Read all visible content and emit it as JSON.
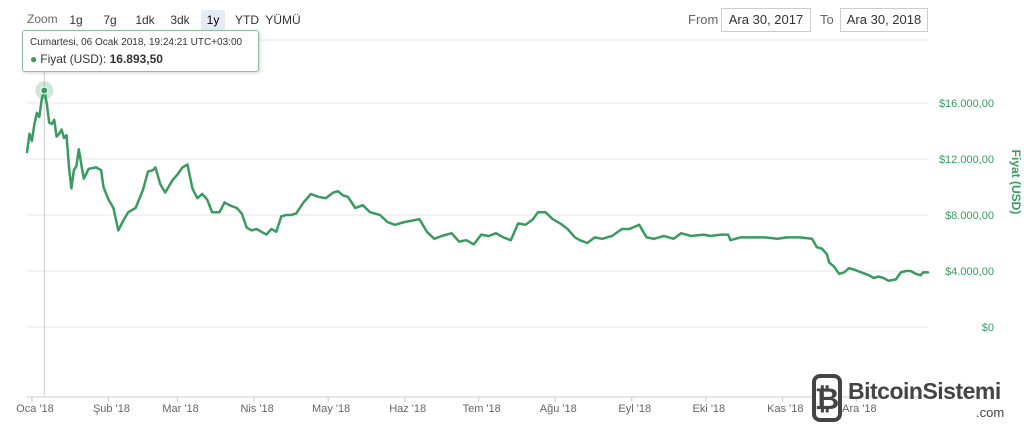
{
  "toolbar": {
    "zoom_label": "Zoom",
    "ranges": [
      "1g",
      "7g",
      "1dk",
      "3dk",
      "1y",
      "YTD",
      "YÜMÜ"
    ],
    "active_range": "1y",
    "from_label": "From",
    "from_value": "Ara 30, 2017",
    "to_label": "To",
    "to_value": "Ara 30, 2018"
  },
  "tooltip": {
    "date": "Cumartesi, 06 Ocak 2018, 19:24:21 UTC+03:00",
    "series": "Fiyat (USD)",
    "value": "16.893,50"
  },
  "watermark": {
    "name": "BitcoinSistemi",
    "suffix": ".com"
  },
  "colors": {
    "line": "#3a9a60",
    "grid": "#e6e6e6",
    "axis_text": "#666666"
  },
  "chart_data": {
    "type": "line",
    "series": [
      {
        "name": "Fiyat (USD)",
        "points": [
          [
            "2017-12-30",
            12500
          ],
          [
            "2017-12-31",
            13800
          ],
          [
            "2018-01-01",
            13300
          ],
          [
            "2018-01-02",
            14500
          ],
          [
            "2018-01-03",
            15300
          ],
          [
            "2018-01-04",
            15000
          ],
          [
            "2018-01-05",
            16300
          ],
          [
            "2018-01-06",
            16893.5
          ],
          [
            "2018-01-07",
            16000
          ],
          [
            "2018-01-08",
            14600
          ],
          [
            "2018-01-09",
            14500
          ],
          [
            "2018-01-10",
            14800
          ],
          [
            "2018-01-11",
            13600
          ],
          [
            "2018-01-12",
            13800
          ],
          [
            "2018-01-13",
            14100
          ],
          [
            "2018-01-14",
            13500
          ],
          [
            "2018-01-15",
            13700
          ],
          [
            "2018-01-16",
            11400
          ],
          [
            "2018-01-17",
            9900
          ],
          [
            "2018-01-18",
            11200
          ],
          [
            "2018-01-19",
            11500
          ],
          [
            "2018-01-20",
            12700
          ],
          [
            "2018-01-21",
            11600
          ],
          [
            "2018-01-22",
            10600
          ],
          [
            "2018-01-24",
            11300
          ],
          [
            "2018-01-27",
            11400
          ],
          [
            "2018-01-29",
            11200
          ],
          [
            "2018-01-30",
            10000
          ],
          [
            "2018-02-01",
            9100
          ],
          [
            "2018-02-03",
            8500
          ],
          [
            "2018-02-05",
            6900
          ],
          [
            "2018-02-07",
            7600
          ],
          [
            "2018-02-09",
            8200
          ],
          [
            "2018-02-12",
            8500
          ],
          [
            "2018-02-15",
            9800
          ],
          [
            "2018-02-17",
            11100
          ],
          [
            "2018-02-19",
            11200
          ],
          [
            "2018-02-20",
            11400
          ],
          [
            "2018-02-22",
            10200
          ],
          [
            "2018-02-24",
            9600
          ],
          [
            "2018-02-27",
            10500
          ],
          [
            "2018-03-01",
            10900
          ],
          [
            "2018-03-03",
            11400
          ],
          [
            "2018-03-05",
            11600
          ],
          [
            "2018-03-07",
            9900
          ],
          [
            "2018-03-09",
            9200
          ],
          [
            "2018-03-11",
            9500
          ],
          [
            "2018-03-13",
            9100
          ],
          [
            "2018-03-15",
            8200
          ],
          [
            "2018-03-18",
            8200
          ],
          [
            "2018-03-20",
            8900
          ],
          [
            "2018-03-22",
            8700
          ],
          [
            "2018-03-25",
            8500
          ],
          [
            "2018-03-27",
            8100
          ],
          [
            "2018-03-29",
            7100
          ],
          [
            "2018-03-31",
            6900
          ],
          [
            "2018-04-02",
            7000
          ],
          [
            "2018-04-04",
            6800
          ],
          [
            "2018-04-06",
            6600
          ],
          [
            "2018-04-08",
            7000
          ],
          [
            "2018-04-10",
            6800
          ],
          [
            "2018-04-12",
            7900
          ],
          [
            "2018-04-14",
            8000
          ],
          [
            "2018-04-16",
            8000
          ],
          [
            "2018-04-18",
            8100
          ],
          [
            "2018-04-21",
            8900
          ],
          [
            "2018-04-24",
            9500
          ],
          [
            "2018-04-27",
            9300
          ],
          [
            "2018-04-30",
            9200
          ],
          [
            "2018-05-03",
            9600
          ],
          [
            "2018-05-05",
            9700
          ],
          [
            "2018-05-07",
            9400
          ],
          [
            "2018-05-09",
            9300
          ],
          [
            "2018-05-12",
            8500
          ],
          [
            "2018-05-15",
            8700
          ],
          [
            "2018-05-18",
            8200
          ],
          [
            "2018-05-22",
            8000
          ],
          [
            "2018-05-25",
            7500
          ],
          [
            "2018-05-28",
            7300
          ],
          [
            "2018-06-01",
            7500
          ],
          [
            "2018-06-04",
            7600
          ],
          [
            "2018-06-07",
            7700
          ],
          [
            "2018-06-10",
            6800
          ],
          [
            "2018-06-13",
            6300
          ],
          [
            "2018-06-16",
            6500
          ],
          [
            "2018-06-20",
            6700
          ],
          [
            "2018-06-23",
            6100
          ],
          [
            "2018-06-26",
            6200
          ],
          [
            "2018-06-29",
            5900
          ],
          [
            "2018-07-02",
            6600
          ],
          [
            "2018-07-05",
            6500
          ],
          [
            "2018-07-08",
            6700
          ],
          [
            "2018-07-11",
            6400
          ],
          [
            "2018-07-14",
            6200
          ],
          [
            "2018-07-17",
            7400
          ],
          [
            "2018-07-20",
            7300
          ],
          [
            "2018-07-23",
            7700
          ],
          [
            "2018-07-25",
            8200
          ],
          [
            "2018-07-28",
            8200
          ],
          [
            "2018-07-31",
            7700
          ],
          [
            "2018-08-03",
            7400
          ],
          [
            "2018-08-06",
            7000
          ],
          [
            "2018-08-09",
            6400
          ],
          [
            "2018-08-11",
            6200
          ],
          [
            "2018-08-14",
            6000
          ],
          [
            "2018-08-17",
            6400
          ],
          [
            "2018-08-20",
            6300
          ],
          [
            "2018-08-24",
            6500
          ],
          [
            "2018-08-28",
            7000
          ],
          [
            "2018-08-31",
            7000
          ],
          [
            "2018-09-04",
            7300
          ],
          [
            "2018-09-07",
            6400
          ],
          [
            "2018-09-10",
            6300
          ],
          [
            "2018-09-14",
            6500
          ],
          [
            "2018-09-18",
            6300
          ],
          [
            "2018-09-21",
            6700
          ],
          [
            "2018-09-25",
            6500
          ],
          [
            "2018-09-30",
            6600
          ],
          [
            "2018-10-03",
            6500
          ],
          [
            "2018-10-07",
            6600
          ],
          [
            "2018-10-10",
            6600
          ],
          [
            "2018-10-11",
            6200
          ],
          [
            "2018-10-15",
            6400
          ],
          [
            "2018-10-20",
            6400
          ],
          [
            "2018-10-25",
            6400
          ],
          [
            "2018-10-30",
            6300
          ],
          [
            "2018-11-03",
            6400
          ],
          [
            "2018-11-08",
            6400
          ],
          [
            "2018-11-13",
            6300
          ],
          [
            "2018-11-15",
            5700
          ],
          [
            "2018-11-17",
            5600
          ],
          [
            "2018-11-19",
            5200
          ],
          [
            "2018-11-20",
            4600
          ],
          [
            "2018-11-22",
            4300
          ],
          [
            "2018-11-24",
            3800
          ],
          [
            "2018-11-26",
            3900
          ],
          [
            "2018-11-28",
            4200
          ],
          [
            "2018-11-30",
            4100
          ],
          [
            "2018-12-03",
            3900
          ],
          [
            "2018-12-06",
            3700
          ],
          [
            "2018-12-08",
            3500
          ],
          [
            "2018-12-10",
            3600
          ],
          [
            "2018-12-12",
            3500
          ],
          [
            "2018-12-14",
            3300
          ],
          [
            "2018-12-17",
            3400
          ],
          [
            "2018-12-19",
            3900
          ],
          [
            "2018-12-21",
            4000
          ],
          [
            "2018-12-23",
            4000
          ],
          [
            "2018-12-25",
            3800
          ],
          [
            "2018-12-27",
            3700
          ],
          [
            "2018-12-28",
            3900
          ],
          [
            "2018-12-30",
            3900
          ]
        ]
      }
    ],
    "x_ticks": [
      "Oca '18",
      "Şub '18",
      "Mar '18",
      "Nis '18",
      "May '18",
      "Haz '18",
      "Tem '18",
      "Ağu '18",
      "Eyl '18",
      "Eki '18",
      "Kas '18",
      "Ara '18"
    ],
    "x_tick_dates": [
      "2018-01-01",
      "2018-02-01",
      "2018-03-01",
      "2018-04-01",
      "2018-05-01",
      "2018-06-01",
      "2018-07-01",
      "2018-08-01",
      "2018-09-01",
      "2018-10-01",
      "2018-11-01",
      "2018-12-01"
    ],
    "xlim": [
      "2017-12-30",
      "2018-12-30"
    ],
    "y_ticks": [
      0,
      4000,
      8000,
      12000,
      16000
    ],
    "y_tick_labels": [
      "$0",
      "$4.000,00",
      "$8.000,00",
      "$12.000,00",
      "$16.000,00"
    ],
    "ylabel": "Fiyat (USD)",
    "ylim": [
      -5000,
      20500
    ],
    "grid": true,
    "highlight_date": "2018-01-06"
  }
}
